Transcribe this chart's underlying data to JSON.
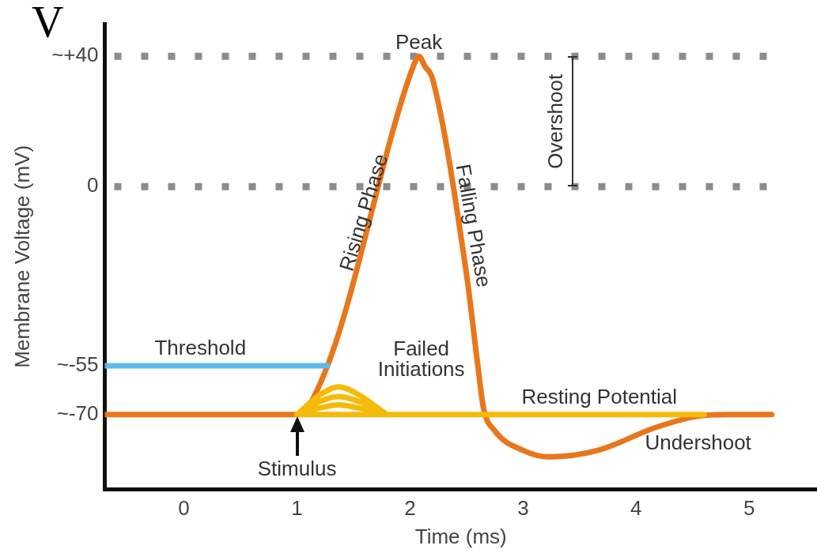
{
  "chart_data": {
    "type": "line",
    "xlabel": "Time (ms)",
    "ylabel": "Membrane Voltage (mV)",
    "xlim": [
      -0.7,
      5.6
    ],
    "xticks": [
      0,
      1,
      2,
      3,
      4,
      5
    ],
    "ylim": [
      -93,
      50
    ],
    "yticks": [
      {
        "value": 40,
        "label": "~+40"
      },
      0,
      {
        "value": -55,
        "label": "~-55"
      },
      {
        "value": -70,
        "label": "~-70"
      }
    ],
    "grid": false,
    "legend": false,
    "series": [
      {
        "name": "Threshold",
        "color": "#5bbbe9",
        "x": [
          -0.7,
          1.27
        ],
        "values": [
          -55,
          -55
        ]
      },
      {
        "name": "Resting Potential",
        "color": "#f5bb0a",
        "x": [
          1,
          4.6
        ],
        "values": [
          -70,
          -70
        ]
      },
      {
        "name": "Failed Initiations",
        "color": "#f5bb0a",
        "x": [
          1,
          1.2,
          1.37,
          1.55,
          1.8,
          1.55,
          1.37,
          1.2,
          1,
          1.2,
          1.37,
          1.55,
          1.8
        ],
        "values": [
          -70,
          -64,
          -61.5,
          -64,
          -70,
          -66,
          -64.5,
          -66,
          -70,
          -68,
          -67,
          -68,
          -70
        ]
      },
      {
        "color": "#e8771c",
        "x": [
          -0.7,
          1,
          1.27,
          2.03,
          2.08,
          2.13,
          2.2,
          2.5,
          2.6,
          2.65,
          2.75,
          3,
          3.23,
          3.66,
          4.17,
          4.54,
          4.8,
          5.2
        ],
        "values": [
          -70,
          -70,
          -55,
          37,
          40,
          37,
          33,
          -27,
          -55,
          -68,
          -75,
          -81,
          -83,
          -81,
          -74,
          -70.5,
          -70,
          -70
        ]
      }
    ],
    "ref_lines": [
      {
        "axis": "y",
        "value": 40,
        "color": "#8c8c8c",
        "line_style": "dotted"
      },
      {
        "axis": "y",
        "value": 0,
        "color": "#8c8c8c",
        "line_style": "dotted"
      }
    ],
    "annotations": [
      "V",
      "Peak",
      "Rising Phase",
      "Falling Phase",
      "Overshoot",
      "Stimulus",
      "Undershoot"
    ]
  }
}
